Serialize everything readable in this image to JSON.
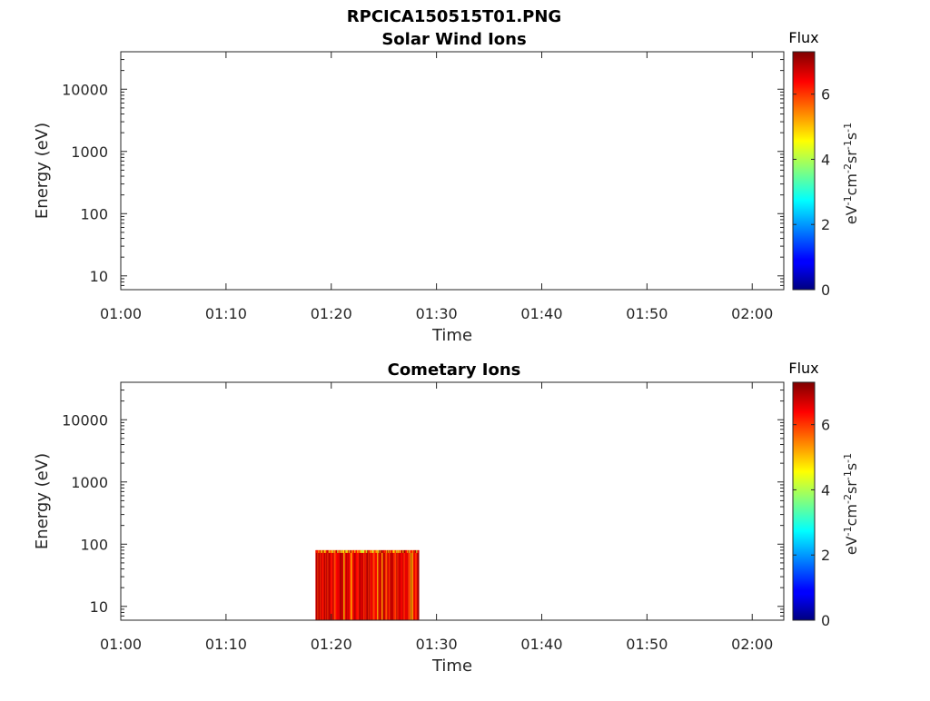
{
  "figure_title": "RPCICA150515T01.PNG",
  "chart_data": [
    {
      "type": "heatmap",
      "title": "Solar Wind Ions",
      "xlabel": "Time",
      "ylabel": "Energy (eV)",
      "x_ticks": [
        "01:00",
        "01:10",
        "01:20",
        "01:30",
        "01:40",
        "01:50",
        "02:00"
      ],
      "xlim": [
        "01:00",
        "02:03"
      ],
      "y_scale": "log",
      "y_ticks": [
        10,
        100,
        1000,
        10000
      ],
      "y_tick_labels": [
        "10",
        "100",
        "1000",
        "10000"
      ],
      "ylim": [
        6,
        40000
      ],
      "colorbar": {
        "label": "Flux",
        "units": "eV-1cm-2sr-1s-1",
        "range": [
          0,
          7.3
        ],
        "ticks": [
          "0",
          "2",
          "4",
          "6"
        ]
      },
      "data_regions": []
    },
    {
      "type": "heatmap",
      "title": "Cometary Ions",
      "xlabel": "Time",
      "ylabel": "Energy (eV)",
      "x_ticks": [
        "01:00",
        "01:10",
        "01:20",
        "01:30",
        "01:40",
        "01:50",
        "02:00"
      ],
      "xlim": [
        "01:00",
        "02:03"
      ],
      "y_scale": "log",
      "y_ticks": [
        10,
        100,
        1000,
        10000
      ],
      "y_tick_labels": [
        "10",
        "100",
        "1000",
        "10000"
      ],
      "ylim": [
        6,
        40000
      ],
      "colorbar": {
        "label": "Flux",
        "units": "eV-1cm-2sr-1s-1",
        "range": [
          0,
          7.3
        ],
        "ticks": [
          "0",
          "2",
          "4",
          "6"
        ]
      },
      "data_regions": [
        {
          "time_start": "01:18:30",
          "time_end": "01:28:20",
          "energy_min": 6,
          "energy_max": 80,
          "flux_min": 4,
          "flux_max": 7.3,
          "typical_flux": 6.5
        }
      ]
    }
  ]
}
